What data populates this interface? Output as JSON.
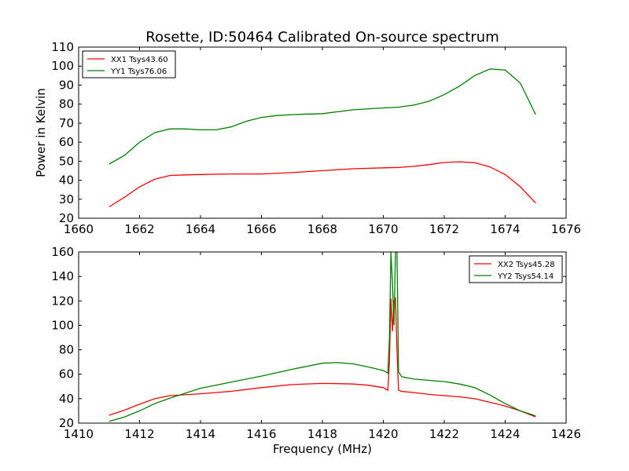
{
  "figure": {
    "title": "Rosette, ID:50464 Calibrated On-source spectrum"
  },
  "chart_data": [
    {
      "type": "line",
      "title": "Rosette, ID:50464 Calibrated On-source spectrum",
      "xlabel": "",
      "ylabel": "Power in Kelvin",
      "xlim": [
        1660,
        1676
      ],
      "ylim": [
        20,
        110
      ],
      "xticks": [
        1660,
        1662,
        1664,
        1666,
        1668,
        1670,
        1672,
        1674,
        1676
      ],
      "yticks": [
        20,
        30,
        40,
        50,
        60,
        70,
        80,
        90,
        100,
        110
      ],
      "grid": false,
      "legend_position": "top-left",
      "series": [
        {
          "name": "XX1 Tsys43.60",
          "color": "#ff0000",
          "x": [
            1661.0,
            1661.5,
            1662.0,
            1662.5,
            1663.0,
            1663.5,
            1664.0,
            1665.0,
            1666.0,
            1667.0,
            1668.0,
            1669.0,
            1670.0,
            1670.5,
            1671.0,
            1671.5,
            1672.0,
            1672.5,
            1673.0,
            1673.5,
            1674.0,
            1674.5,
            1675.0
          ],
          "values": [
            26,
            31,
            36.5,
            40.5,
            42.5,
            42.8,
            43,
            43.3,
            43.3,
            44,
            45,
            46,
            46.5,
            46.7,
            47.3,
            48.2,
            49.3,
            49.7,
            49.2,
            47,
            43,
            36.5,
            28
          ]
        },
        {
          "name": "YY1 Tsys76.06",
          "color": "#008000",
          "x": [
            1661.0,
            1661.5,
            1662.0,
            1662.5,
            1663.0,
            1663.5,
            1664.0,
            1664.5,
            1665.0,
            1665.5,
            1666.0,
            1666.5,
            1667.0,
            1668.0,
            1669.0,
            1670.0,
            1670.5,
            1671.0,
            1671.5,
            1672.0,
            1672.5,
            1673.0,
            1673.5,
            1674.0,
            1674.5,
            1675.0
          ],
          "values": [
            48.5,
            53,
            60,
            65,
            67,
            67,
            66.5,
            66.5,
            68,
            71,
            73,
            74,
            74.5,
            75,
            77,
            78,
            78.4,
            79.5,
            81.5,
            85,
            89.5,
            95,
            98.5,
            98,
            91,
            74.5
          ]
        }
      ]
    },
    {
      "type": "line",
      "title": "",
      "xlabel": "Frequency (MHz)",
      "ylabel": "",
      "xlim": [
        1410,
        1426
      ],
      "ylim": [
        20,
        160
      ],
      "xticks": [
        1410,
        1412,
        1414,
        1416,
        1418,
        1420,
        1422,
        1424,
        1426
      ],
      "yticks": [
        20,
        40,
        60,
        80,
        100,
        120,
        140,
        160
      ],
      "grid": false,
      "legend_position": "top-right",
      "series": [
        {
          "name": "XX2 Tsys45.28",
          "color": "#ff0000",
          "x": [
            1411.0,
            1411.5,
            1412.0,
            1412.5,
            1413.0,
            1414.0,
            1415.0,
            1416.0,
            1417.0,
            1418.0,
            1418.5,
            1419.0,
            1419.5,
            1420.0,
            1420.15,
            1420.2,
            1420.25,
            1420.3,
            1420.35,
            1420.4,
            1420.45,
            1420.5,
            1420.6,
            1420.8,
            1421.0,
            1421.5,
            1422.0,
            1422.5,
            1423.0,
            1423.5,
            1424.0,
            1424.5,
            1425.0
          ],
          "values": [
            26.5,
            30.5,
            35.5,
            40,
            42.5,
            44,
            46,
            49,
            51.5,
            52.5,
            52.3,
            52,
            51,
            49,
            47,
            70,
            122,
            95,
            120,
            122,
            80,
            47,
            46,
            45.5,
            45,
            43.5,
            42.5,
            41.5,
            40,
            37,
            34,
            30,
            25
          ]
        },
        {
          "name": "YY2 Tsys54.14",
          "color": "#008000",
          "x": [
            1411.0,
            1411.5,
            1412.0,
            1412.5,
            1413.0,
            1413.5,
            1414.0,
            1414.5,
            1415.0,
            1416.0,
            1417.0,
            1418.0,
            1418.5,
            1419.0,
            1419.5,
            1420.0,
            1420.15,
            1420.2,
            1420.25,
            1420.3,
            1420.35,
            1420.4,
            1420.45,
            1420.5,
            1420.6,
            1420.8,
            1421.0,
            1421.5,
            1422.0,
            1422.5,
            1423.0,
            1423.5,
            1424.0,
            1424.5,
            1425.0
          ],
          "values": [
            21.5,
            25,
            30,
            36,
            40.5,
            44.5,
            48.5,
            51,
            53.5,
            58.5,
            64,
            69,
            69.5,
            68.5,
            66,
            63,
            61,
            90,
            160,
            135,
            100,
            160,
            160,
            62,
            58,
            57,
            56,
            55,
            54,
            52,
            49,
            43,
            36,
            30,
            26
          ]
        }
      ]
    }
  ]
}
